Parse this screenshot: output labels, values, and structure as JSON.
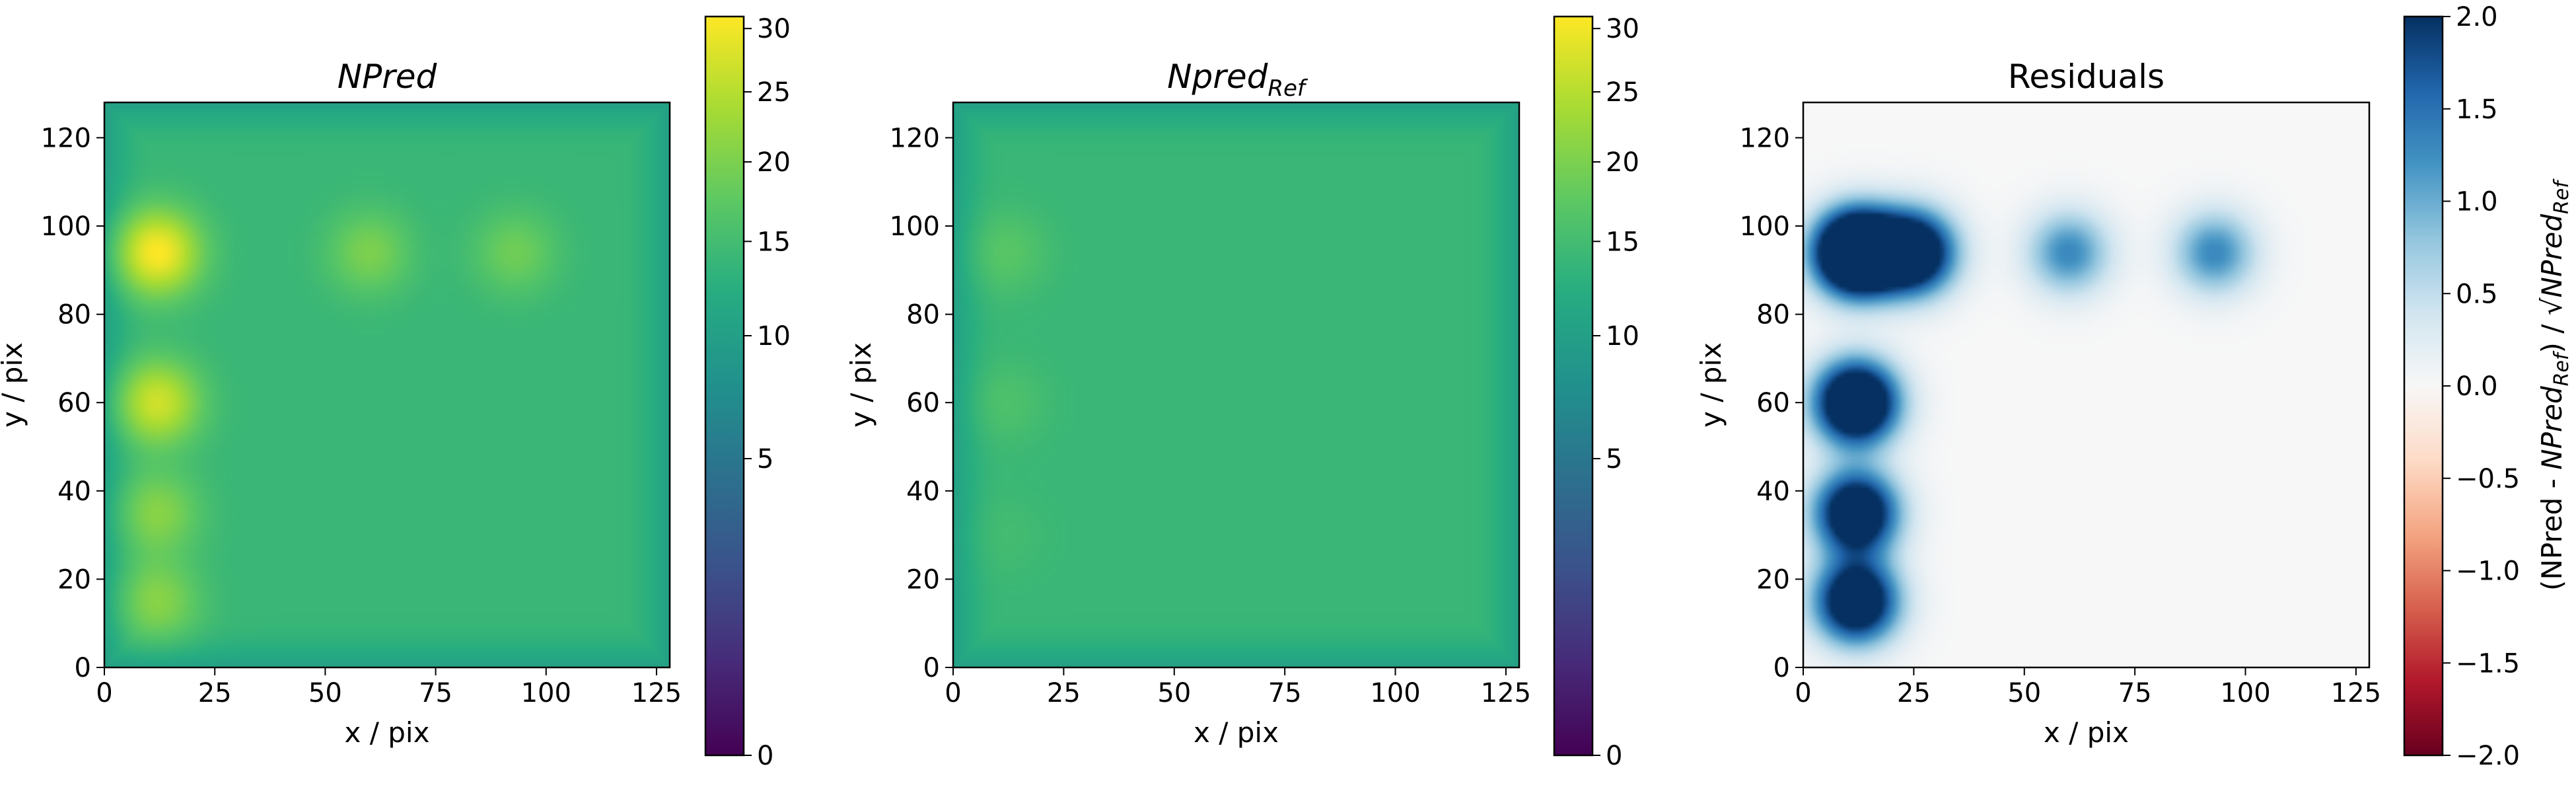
{
  "chart_data": [
    {
      "type": "heatmap",
      "title": "NPred",
      "title_italic": true,
      "xlabel": "x / pix",
      "ylabel": "y / pix",
      "xlim": [
        0,
        128
      ],
      "ylim": [
        0,
        128
      ],
      "xticks": [
        0,
        25,
        50,
        75,
        100,
        125
      ],
      "yticks": [
        0,
        20,
        40,
        60,
        80,
        100,
        120
      ],
      "grid": false,
      "colormap": "viridis",
      "colorbar": {
        "scale": "sqrt",
        "range": [
          0,
          31
        ],
        "ticks": [
          0,
          5,
          10,
          15,
          20,
          25,
          30
        ],
        "label": ""
      },
      "background_level": 14,
      "edge_level": 10,
      "sources": [
        {
          "x": 12,
          "y": 94,
          "peak": 31
        },
        {
          "x": 60,
          "y": 94,
          "peak": 20
        },
        {
          "x": 93,
          "y": 94,
          "peak": 19
        },
        {
          "x": 12,
          "y": 60,
          "peak": 27
        },
        {
          "x": 12,
          "y": 35,
          "peak": 21
        },
        {
          "x": 12,
          "y": 15,
          "peak": 21
        }
      ]
    },
    {
      "type": "heatmap",
      "title": "Npred",
      "title_subscript": "Ref",
      "title_italic": true,
      "xlabel": "x / pix",
      "ylabel": "y / pix",
      "xlim": [
        0,
        128
      ],
      "ylim": [
        0,
        128
      ],
      "xticks": [
        0,
        25,
        50,
        75,
        100,
        125
      ],
      "yticks": [
        0,
        20,
        40,
        60,
        80,
        100,
        120
      ],
      "grid": false,
      "colormap": "viridis",
      "colorbar": {
        "scale": "sqrt",
        "range": [
          0,
          31
        ],
        "ticks": [
          0,
          5,
          10,
          15,
          20,
          25,
          30
        ],
        "label": ""
      },
      "background_level": 14,
      "edge_level": 10,
      "sources": [
        {
          "x": 12,
          "y": 94,
          "peak": 17
        },
        {
          "x": 12,
          "y": 60,
          "peak": 16
        },
        {
          "x": 12,
          "y": 30,
          "peak": 15
        }
      ]
    },
    {
      "type": "heatmap",
      "title": "Residuals",
      "title_italic": false,
      "xlabel": "x / pix",
      "ylabel": "y / pix",
      "xlim": [
        0,
        128
      ],
      "ylim": [
        0,
        128
      ],
      "xticks": [
        0,
        25,
        50,
        75,
        100,
        125
      ],
      "yticks": [
        0,
        20,
        40,
        60,
        80,
        100,
        120
      ],
      "grid": false,
      "colormap": "RdBu",
      "colorbar": {
        "scale": "linear",
        "range": [
          -2.0,
          2.0
        ],
        "ticks": [
          -2.0,
          -1.5,
          -1.0,
          -0.5,
          0.0,
          0.5,
          1.0,
          1.5,
          2.0
        ],
        "tick_labels": [
          "−2.0",
          "−1.5",
          "−1.0",
          "−0.5",
          "0.0",
          "0.5",
          "1.0",
          "1.5",
          "2.0"
        ],
        "label": "(NPred - NPred_Ref) / √NPred_Ref"
      },
      "background_level": 0,
      "sources": [
        {
          "x": 12,
          "y": 94,
          "peak": 4.5
        },
        {
          "x": 25,
          "y": 94,
          "peak": 3.0
        },
        {
          "x": 60,
          "y": 94,
          "peak": 1.3
        },
        {
          "x": 93,
          "y": 94,
          "peak": 1.3
        },
        {
          "x": 12,
          "y": 60,
          "peak": 3.5
        },
        {
          "x": 12,
          "y": 35,
          "peak": 3.0
        },
        {
          "x": 12,
          "y": 15,
          "peak": 3.0
        }
      ]
    }
  ]
}
